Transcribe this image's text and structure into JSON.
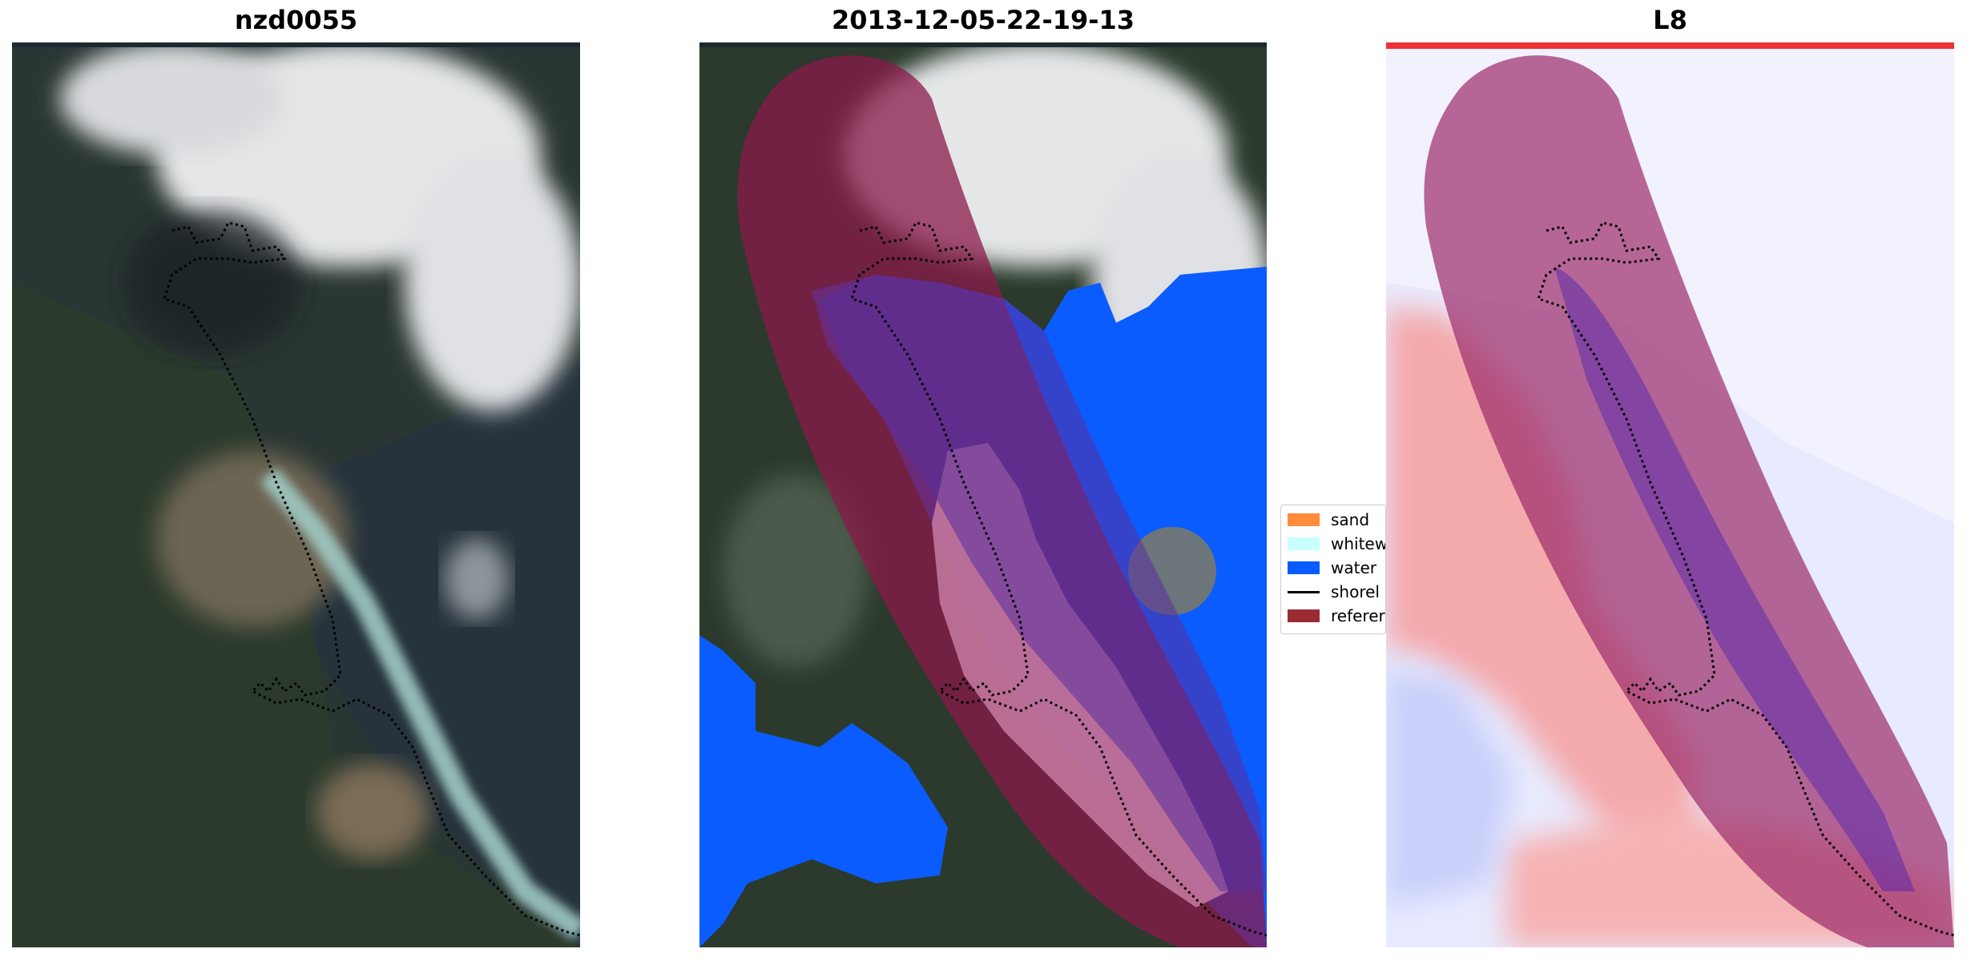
{
  "panels": [
    {
      "title": "nzd0055"
    },
    {
      "title": "2013-12-05-22-19-13"
    },
    {
      "title": "L8"
    }
  ],
  "legend": {
    "items": [
      {
        "label": "sand",
        "color": "#ff8c3a"
      },
      {
        "label": "whitew",
        "color": "#c8ffff"
      },
      {
        "label": "water",
        "color": "#0a5cff"
      },
      {
        "label": "shorel",
        "color": "#000000"
      },
      {
        "label": "referer",
        "color": "#9b2b33"
      }
    ]
  },
  "colors": {
    "reference_overlay": "#8b1a4a",
    "water": "#0a5cff",
    "cloud": "#e8e8ea",
    "land": "#2c3a2f",
    "ocean": "#233039"
  }
}
